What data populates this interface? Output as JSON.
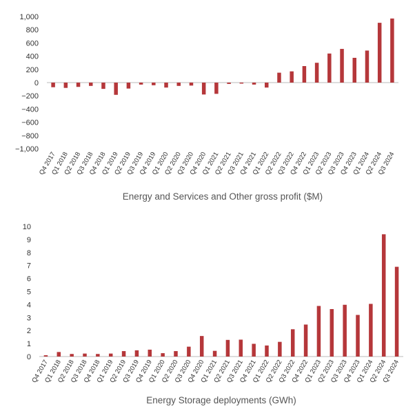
{
  "chart_data": [
    {
      "type": "bar",
      "title": "Energy and Services and Other gross profit ($M)",
      "xlabel": "",
      "ylabel": "",
      "ylim": [
        -1000,
        1000
      ],
      "yticks": [
        1000,
        800,
        600,
        400,
        200,
        0,
        -200,
        -400,
        -600,
        -800,
        -1000
      ],
      "ytick_labels": [
        "1,000",
        "800",
        "600",
        "400",
        "200",
        "0",
        "−200",
        "−400",
        "−600",
        "−800",
        "−1,000"
      ],
      "grid": false,
      "categories": [
        "Q4 2017",
        "Q1 2018",
        "Q2 2018",
        "Q3 2018",
        "Q4 2018",
        "Q1 2019",
        "Q2 2019",
        "Q3 2019",
        "Q4 2019",
        "Q1 2020",
        "Q2 2020",
        "Q3 2020",
        "Q4 2020",
        "Q1 2021",
        "Q2 2021",
        "Q3 2021",
        "Q4 2021",
        "Q1 2022",
        "Q2 2022",
        "Q3 2022",
        "Q4 2022",
        "Q1 2023",
        "Q2 2023",
        "Q3 2023",
        "Q4 2023",
        "Q1 2024",
        "Q2 2024",
        "Q3 2024"
      ],
      "values": [
        -70,
        -80,
        -65,
        -50,
        -95,
        -185,
        -90,
        -30,
        -40,
        -75,
        -50,
        -45,
        -180,
        -170,
        -20,
        -15,
        -30,
        -75,
        150,
        170,
        250,
        300,
        440,
        510,
        375,
        485,
        905,
        970
      ],
      "color": "#b5373a"
    },
    {
      "type": "bar",
      "title": "Energy Storage deployments (GWh)",
      "xlabel": "",
      "ylabel": "",
      "ylim": [
        0,
        10
      ],
      "yticks": [
        10,
        9,
        8,
        7,
        6,
        5,
        4,
        3,
        2,
        1,
        0
      ],
      "ytick_labels": [
        "10",
        "9",
        "8",
        "7",
        "6",
        "5",
        "4",
        "3",
        "2",
        "1",
        "0"
      ],
      "grid": false,
      "categories": [
        "Q4 2017",
        "Q1 2018",
        "Q2 2018",
        "Q3 2018",
        "Q4 2018",
        "Q1 2019",
        "Q2 2019",
        "Q3 2019",
        "Q4 2019",
        "Q1 2020",
        "Q2 2020",
        "Q3 2020",
        "Q4 2020",
        "Q1 2021",
        "Q2 2021",
        "Q3 2021",
        "Q4 2021",
        "Q1 2022",
        "Q2 2022",
        "Q3 2022",
        "Q4 2022",
        "Q1 2023",
        "Q2 2023",
        "Q3 2023",
        "Q4 2023",
        "Q1 2024",
        "Q2 2024",
        "Q3 2024"
      ],
      "values": [
        0.1,
        0.35,
        0.2,
        0.23,
        0.2,
        0.23,
        0.42,
        0.48,
        0.53,
        0.26,
        0.42,
        0.76,
        1.58,
        0.44,
        1.28,
        1.3,
        0.98,
        0.85,
        1.13,
        2.1,
        2.46,
        3.89,
        3.65,
        3.98,
        3.2,
        4.05,
        9.4,
        6.9
      ],
      "color": "#b5373a"
    }
  ]
}
